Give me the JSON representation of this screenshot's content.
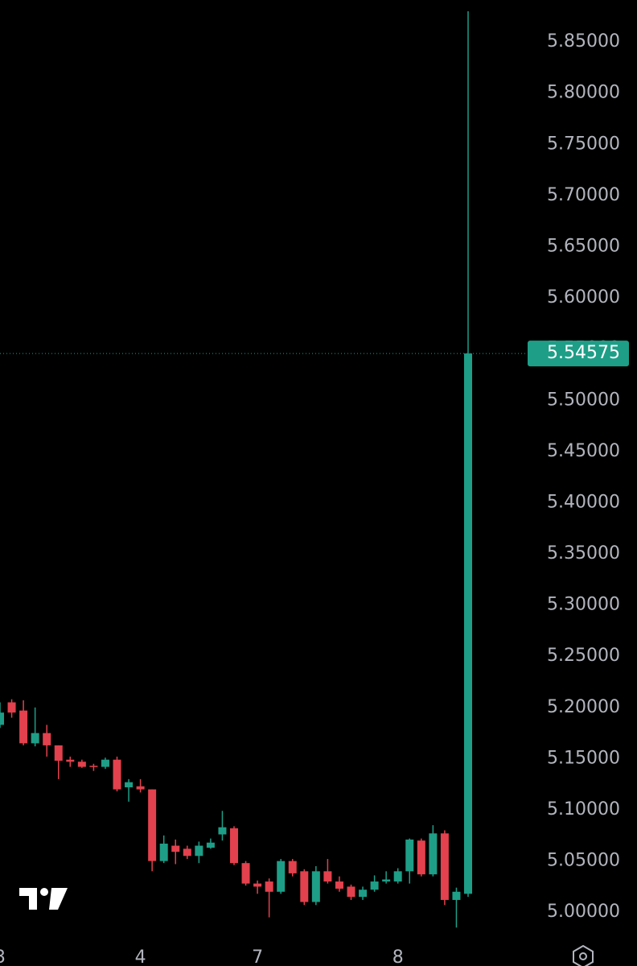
{
  "chart_data": {
    "type": "candlestick",
    "categories": [
      "3",
      null,
      null,
      null,
      null,
      null,
      null,
      null,
      null,
      null,
      null,
      null,
      "4",
      null,
      null,
      null,
      null,
      null,
      null,
      null,
      null,
      null,
      "7",
      null,
      null,
      null,
      null,
      null,
      null,
      null,
      null,
      null,
      null,
      null,
      "8",
      null,
      null,
      null,
      null,
      null,
      null
    ],
    "open": [
      5.183,
      5.205,
      5.197,
      5.165,
      5.175,
      5.163,
      5.149,
      5.147,
      5.143,
      5.142,
      5.149,
      5.122,
      5.123,
      5.12,
      5.05,
      5.065,
      5.062,
      5.055,
      5.063,
      5.076,
      5.082,
      5.048,
      5.028,
      5.03,
      5.02,
      5.05,
      5.04,
      5.01,
      5.04,
      5.03,
      5.025,
      5.015,
      5.022,
      5.03,
      5.03,
      5.04,
      5.07,
      5.037,
      5.077,
      5.012,
      5.018
    ],
    "high": [
      5.205,
      5.208,
      5.207,
      5.2,
      5.183,
      5.163,
      5.152,
      5.149,
      5.145,
      5.151,
      5.152,
      5.13,
      5.13,
      5.12,
      5.075,
      5.071,
      5.065,
      5.069,
      5.072,
      5.099,
      5.084,
      5.05,
      5.031,
      5.033,
      5.052,
      5.052,
      5.042,
      5.045,
      5.052,
      5.035,
      5.027,
      5.025,
      5.036,
      5.04,
      5.043,
      5.072,
      5.072,
      5.085,
      5.08,
      5.024,
      5.88
    ],
    "low": [
      5.18,
      5.19,
      5.163,
      5.162,
      5.152,
      5.13,
      5.142,
      5.141,
      5.138,
      5.14,
      5.118,
      5.108,
      5.117,
      5.04,
      5.048,
      5.047,
      5.052,
      5.048,
      5.062,
      5.07,
      5.046,
      5.026,
      5.018,
      4.995,
      5.018,
      5.035,
      5.007,
      5.007,
      5.028,
      5.02,
      5.012,
      5.012,
      5.02,
      5.028,
      5.028,
      5.028,
      5.035,
      5.035,
      5.007,
      4.985,
      5.015
    ],
    "close": [
      5.195,
      5.195,
      5.165,
      5.175,
      5.163,
      5.148,
      5.147,
      5.142,
      5.142,
      5.149,
      5.12,
      5.127,
      5.12,
      5.05,
      5.067,
      5.059,
      5.055,
      5.065,
      5.068,
      5.083,
      5.048,
      5.028,
      5.025,
      5.02,
      5.05,
      5.038,
      5.01,
      5.04,
      5.03,
      5.023,
      5.015,
      5.022,
      5.03,
      5.032,
      5.04,
      5.071,
      5.037,
      5.077,
      5.012,
      5.02,
      5.54575
    ],
    "up_color": "#1e9e87",
    "down_color": "#e2414d",
    "last_price": 5.54575,
    "ylim": [
      4.975,
      5.891
    ],
    "yticks": [
      {
        "value": 5.0,
        "label": "5.00000"
      },
      {
        "value": 5.05,
        "label": "5.05000"
      },
      {
        "value": 5.1,
        "label": "5.10000"
      },
      {
        "value": 5.15,
        "label": "5.15000"
      },
      {
        "value": 5.2,
        "label": "5.20000"
      },
      {
        "value": 5.25,
        "label": "5.25000"
      },
      {
        "value": 5.3,
        "label": "5.30000"
      },
      {
        "value": 5.35,
        "label": "5.35000"
      },
      {
        "value": 5.4,
        "label": "5.40000"
      },
      {
        "value": 5.45,
        "label": "5.45000"
      },
      {
        "value": 5.5,
        "label": "5.50000"
      },
      {
        "value": 5.55,
        "label": "5.55000"
      },
      {
        "value": 5.6,
        "label": "5.60000"
      },
      {
        "value": 5.65,
        "label": "5.65000"
      },
      {
        "value": 5.7,
        "label": "5.70000"
      },
      {
        "value": 5.75,
        "label": "5.75000"
      },
      {
        "value": 5.8,
        "label": "5.80000"
      },
      {
        "value": 5.85,
        "label": "5.85000"
      }
    ]
  }
}
